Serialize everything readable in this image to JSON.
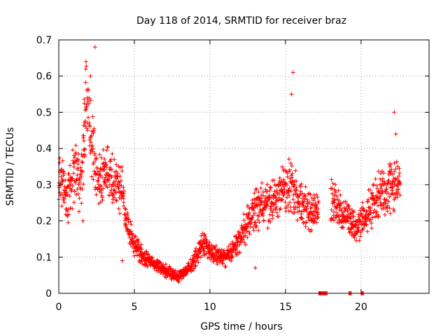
{
  "chart_data": {
    "type": "scatter",
    "title": "Day 118 of 2014, SRMTID for receiver braz",
    "xlabel": "GPS time / hours",
    "ylabel": "SRMTID / TECUs",
    "xlim": [
      0,
      24.5
    ],
    "ylim": [
      0,
      0.7
    ],
    "xticks": [
      0,
      5,
      10,
      15,
      20
    ],
    "yticks": [
      0,
      0.1,
      0.2,
      0.3,
      0.4,
      0.5,
      0.6,
      0.7
    ],
    "xtick_labels": [
      "0",
      "5",
      "10",
      "15",
      "20"
    ],
    "ytick_labels": [
      "0",
      "0.1",
      "0.2",
      "0.3",
      "0.4",
      "0.5",
      "0.6",
      "0.7"
    ],
    "grid": true,
    "marker": "plus",
    "color": "#ff0000",
    "series": [
      {
        "name": "SRMTID",
        "x": [
          0.0,
          0.2,
          0.4,
          0.6,
          0.8,
          1.0,
          1.2,
          1.4,
          1.6,
          1.7,
          1.8,
          2.0,
          2.2,
          2.4,
          2.6,
          2.8,
          3.0,
          3.2,
          3.4,
          3.6,
          3.8,
          4.0,
          4.2,
          4.4,
          4.6,
          4.8,
          5.0,
          5.3,
          5.6,
          6.0,
          6.4,
          6.8,
          7.2,
          7.6,
          8.0,
          8.4,
          8.8,
          9.2,
          9.5,
          9.8,
          10.2,
          10.6,
          11.0,
          11.4,
          11.8,
          12.2,
          12.6,
          13.0,
          13.4,
          13.8,
          14.2,
          14.6,
          15.0,
          15.3,
          15.6,
          16.0,
          16.4,
          16.8,
          17.2,
          17.5,
          18.0,
          18.4,
          18.8,
          19.2,
          19.6,
          20.0,
          20.4,
          20.8,
          21.2,
          21.6,
          22.0,
          22.3,
          22.6
        ],
        "y": [
          0.3,
          0.32,
          0.28,
          0.26,
          0.3,
          0.34,
          0.33,
          0.29,
          0.36,
          0.45,
          0.55,
          0.47,
          0.4,
          0.36,
          0.33,
          0.32,
          0.34,
          0.33,
          0.32,
          0.3,
          0.3,
          0.3,
          0.28,
          0.22,
          0.18,
          0.16,
          0.14,
          0.12,
          0.1,
          0.09,
          0.08,
          0.07,
          0.06,
          0.05,
          0.05,
          0.06,
          0.08,
          0.11,
          0.14,
          0.13,
          0.11,
          0.1,
          0.1,
          0.11,
          0.14,
          0.17,
          0.2,
          0.23,
          0.25,
          0.24,
          0.25,
          0.27,
          0.29,
          0.3,
          0.28,
          0.25,
          0.23,
          0.22,
          0.25,
          0.0,
          0.26,
          0.25,
          0.22,
          0.2,
          0.18,
          0.2,
          0.22,
          0.25,
          0.28,
          0.27,
          0.3,
          0.32,
          0.28
        ],
        "outliers": [
          [
            1.8,
            0.64
          ],
          [
            2.4,
            0.68
          ],
          [
            2.1,
            0.6
          ],
          [
            15.5,
            0.61
          ],
          [
            15.4,
            0.55
          ],
          [
            22.2,
            0.5
          ],
          [
            22.3,
            0.44
          ],
          [
            1.6,
            0.2
          ],
          [
            4.2,
            0.09
          ],
          [
            13.0,
            0.07
          ]
        ],
        "zero_points": [
          17.2,
          17.4,
          17.6,
          19.2,
          20.0
        ]
      }
    ]
  }
}
